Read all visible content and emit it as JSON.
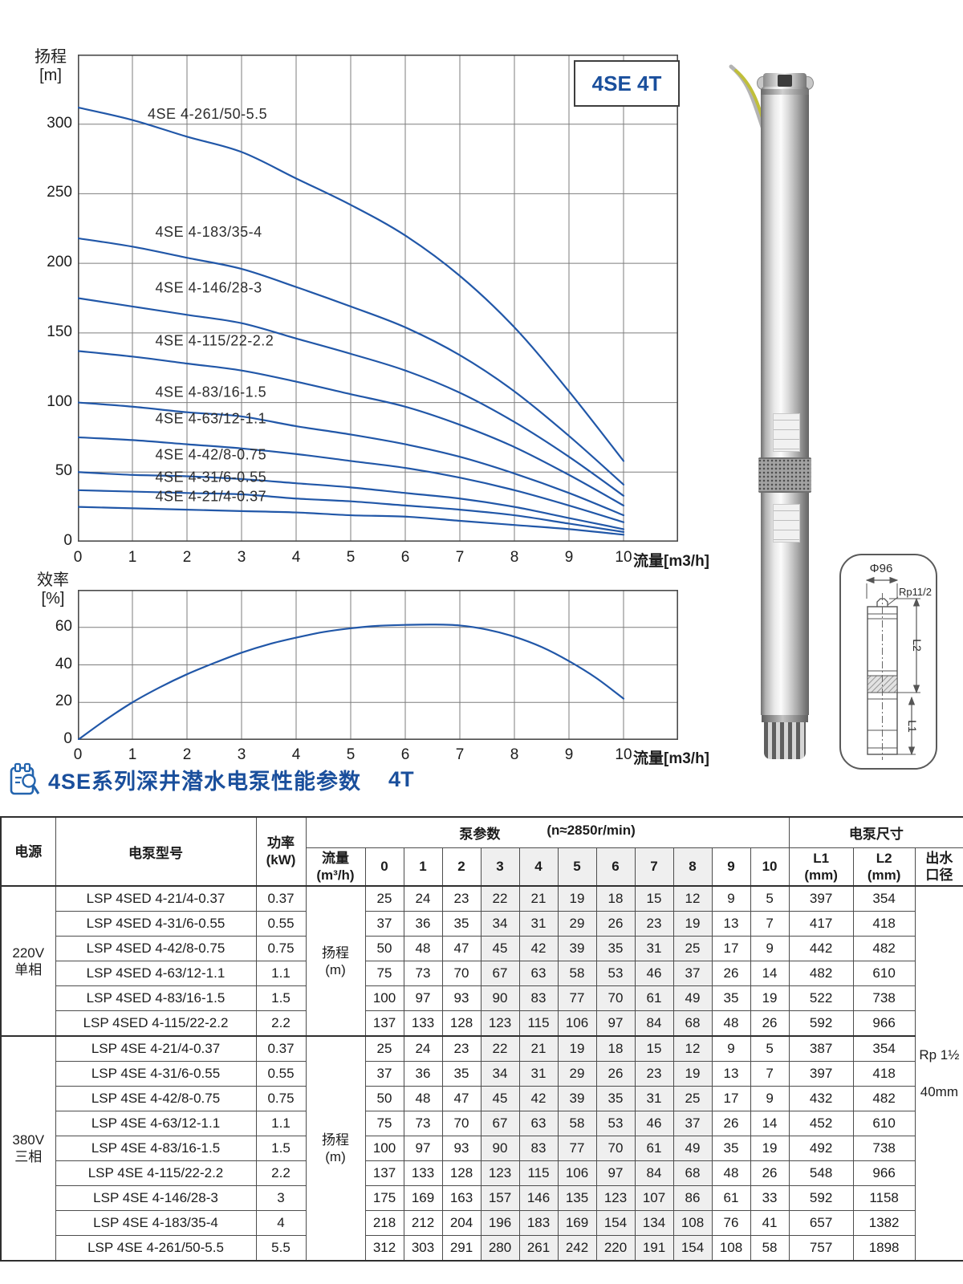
{
  "colors": {
    "accent": "#1a4f9c",
    "curve": "#2157a8",
    "shade": "#efefef",
    "grid": "#7d7d7d",
    "cable_yellow": "#c0bf3a",
    "cable_gray": "#b3b3b3"
  },
  "charts": {
    "head_axis_label": "扬程\n[m]",
    "eff_axis_label": "效率\n[%]",
    "flow_axis_label": "流量[m3/h]"
  },
  "chart_data": [
    {
      "type": "line",
      "title": "4SE 4T",
      "xlabel": "流量[m3/h]",
      "ylabel": "扬程 [m]",
      "xlim": [
        0,
        11
      ],
      "ylim": [
        0,
        350
      ],
      "grid": true,
      "grid_step_y": 50,
      "xticks": [
        0,
        1,
        2,
        3,
        4,
        5,
        6,
        7,
        8,
        9,
        10
      ],
      "yticks": [
        0,
        50,
        100,
        150,
        200,
        250,
        300
      ],
      "x": [
        0,
        1,
        2,
        3,
        4,
        5,
        6,
        7,
        8,
        9,
        10
      ],
      "series": [
        {
          "name": "4SE 4-261/50-5.5",
          "values": [
            312,
            303,
            291,
            280,
            261,
            242,
            220,
            191,
            154,
            108,
            58
          ],
          "label_at": [
            1.28,
            304
          ]
        },
        {
          "name": "4SE 4-183/35-4",
          "values": [
            218,
            212,
            204,
            196,
            183,
            169,
            154,
            134,
            108,
            76,
            41
          ],
          "label_at": [
            1.42,
            219
          ]
        },
        {
          "name": "4SE 4-146/28-3",
          "values": [
            175,
            169,
            163,
            157,
            146,
            135,
            123,
            107,
            86,
            61,
            33
          ],
          "label_at": [
            1.42,
            179
          ]
        },
        {
          "name": "4SE 4-115/22-2.2",
          "values": [
            137,
            133,
            128,
            123,
            115,
            106,
            97,
            84,
            68,
            48,
            26
          ],
          "label_at": [
            1.42,
            141
          ]
        },
        {
          "name": "4SE 4-83/16-1.5",
          "values": [
            100,
            97,
            93,
            90,
            83,
            77,
            70,
            61,
            49,
            35,
            19
          ],
          "label_at": [
            1.42,
            104
          ]
        },
        {
          "name": "4SE 4-63/12-1.1",
          "values": [
            75,
            73,
            70,
            67,
            63,
            58,
            53,
            46,
            37,
            26,
            14
          ],
          "label_at": [
            1.42,
            85
          ]
        },
        {
          "name": "4SE 4-42/8-0.75",
          "values": [
            50,
            48,
            47,
            45,
            42,
            39,
            35,
            31,
            25,
            17,
            9
          ],
          "label_at": [
            1.42,
            59
          ]
        },
        {
          "name": "4SE 4-31/6-0.55",
          "values": [
            37,
            36,
            35,
            34,
            31,
            29,
            26,
            23,
            19,
            13,
            7
          ],
          "label_at": [
            1.42,
            43
          ]
        },
        {
          "name": "4SE 4-21/4-0.37",
          "values": [
            25,
            24,
            23,
            22,
            21,
            19,
            18,
            15,
            12,
            9,
            5
          ],
          "label_at": [
            1.42,
            29
          ]
        }
      ]
    },
    {
      "type": "line",
      "title": "",
      "xlabel": "流量[m3/h]",
      "ylabel": "效率 [%]",
      "xlim": [
        0,
        11
      ],
      "ylim": [
        0,
        80
      ],
      "grid": true,
      "grid_step_y": 20,
      "xticks": [
        0,
        1,
        2,
        3,
        4,
        5,
        6,
        7,
        8,
        9,
        10
      ],
      "yticks": [
        0,
        20,
        40,
        60
      ],
      "series": [
        {
          "name": "efficiency",
          "points": [
            [
              0,
              0
            ],
            [
              0.5,
              10.5
            ],
            [
              1,
              20
            ],
            [
              1.5,
              28
            ],
            [
              2,
              35
            ],
            [
              2.5,
              41
            ],
            [
              3,
              46.5
            ],
            [
              3.5,
              51
            ],
            [
              4,
              54.5
            ],
            [
              4.5,
              57.5
            ],
            [
              5,
              59.5
            ],
            [
              5.5,
              60.8
            ],
            [
              6,
              61.3
            ],
            [
              6.5,
              61.5
            ],
            [
              7,
              61
            ],
            [
              7.5,
              58.8
            ],
            [
              8,
              55
            ],
            [
              8.5,
              49.5
            ],
            [
              9,
              42
            ],
            [
              9.5,
              33
            ],
            [
              10,
              22
            ]
          ]
        }
      ]
    }
  ],
  "diagram": {
    "diameter": "Φ96",
    "thread": "Rp11/2",
    "l1": "L1",
    "l2": "L2"
  },
  "section": {
    "title": "4SE系列深井潜水电泵性能参数",
    "suffix": "4T"
  },
  "table": {
    "header": {
      "power": "电源",
      "model": "电泵型号",
      "kw": "功率\n(kW)",
      "pump_params": "泵参数",
      "speed": "(n≈2850r/min)",
      "dims": "电泵尺寸",
      "flow": "流量\n(m³/h)",
      "flows": [
        "0",
        "1",
        "2",
        "3",
        "4",
        "5",
        "6",
        "7",
        "8",
        "9",
        "10"
      ],
      "l1": "L1\n(mm)",
      "l2": "L2\n(mm)",
      "outlet": "出水\n口径"
    },
    "shaded_flows": [
      3,
      4,
      5,
      6,
      7,
      8
    ],
    "head_unit": "扬程\n(m)",
    "outlet_value": {
      "line1": "Rp 1½",
      "line2": "40mm"
    },
    "groups": [
      {
        "power": "220V\n单相",
        "rows": [
          {
            "model": "LSP 4SED 4-21/4-0.37",
            "kw": "0.37",
            "heads": [
              25,
              24,
              23,
              22,
              21,
              19,
              18,
              15,
              12,
              9,
              5
            ],
            "l1": "397",
            "l2": "354"
          },
          {
            "model": "LSP 4SED 4-31/6-0.55",
            "kw": "0.55",
            "heads": [
              37,
              36,
              35,
              34,
              31,
              29,
              26,
              23,
              19,
              13,
              7
            ],
            "l1": "417",
            "l2": "418"
          },
          {
            "model": "LSP 4SED 4-42/8-0.75",
            "kw": "0.75",
            "heads": [
              50,
              48,
              47,
              45,
              42,
              39,
              35,
              31,
              25,
              17,
              9
            ],
            "l1": "442",
            "l2": "482"
          },
          {
            "model": "LSP 4SED 4-63/12-1.1",
            "kw": "1.1",
            "heads": [
              75,
              73,
              70,
              67,
              63,
              58,
              53,
              46,
              37,
              26,
              14
            ],
            "l1": "482",
            "l2": "610"
          },
          {
            "model": "LSP 4SED 4-83/16-1.5",
            "kw": "1.5",
            "heads": [
              100,
              97,
              93,
              90,
              83,
              77,
              70,
              61,
              49,
              35,
              19
            ],
            "l1": "522",
            "l2": "738"
          },
          {
            "model": "LSP 4SED 4-115/22-2.2",
            "kw": "2.2",
            "heads": [
              137,
              133,
              128,
              123,
              115,
              106,
              97,
              84,
              68,
              48,
              26
            ],
            "l1": "592",
            "l2": "966"
          }
        ]
      },
      {
        "power": "380V\n三相",
        "rows": [
          {
            "model": "LSP 4SE 4-21/4-0.37",
            "kw": "0.37",
            "heads": [
              25,
              24,
              23,
              22,
              21,
              19,
              18,
              15,
              12,
              9,
              5
            ],
            "l1": "387",
            "l2": "354"
          },
          {
            "model": "LSP 4SE 4-31/6-0.55",
            "kw": "0.55",
            "heads": [
              37,
              36,
              35,
              34,
              31,
              29,
              26,
              23,
              19,
              13,
              7
            ],
            "l1": "397",
            "l2": "418"
          },
          {
            "model": "LSP 4SE 4-42/8-0.75",
            "kw": "0.75",
            "heads": [
              50,
              48,
              47,
              45,
              42,
              39,
              35,
              31,
              25,
              17,
              9
            ],
            "l1": "432",
            "l2": "482"
          },
          {
            "model": "LSP 4SE 4-63/12-1.1",
            "kw": "1.1",
            "heads": [
              75,
              73,
              70,
              67,
              63,
              58,
              53,
              46,
              37,
              26,
              14
            ],
            "l1": "452",
            "l2": "610"
          },
          {
            "model": "LSP 4SE 4-83/16-1.5",
            "kw": "1.5",
            "heads": [
              100,
              97,
              93,
              90,
              83,
              77,
              70,
              61,
              49,
              35,
              19
            ],
            "l1": "492",
            "l2": "738"
          },
          {
            "model": "LSP 4SE 4-115/22-2.2",
            "kw": "2.2",
            "heads": [
              137,
              133,
              128,
              123,
              115,
              106,
              97,
              84,
              68,
              48,
              26
            ],
            "l1": "548",
            "l2": "966"
          },
          {
            "model": "LSP 4SE 4-146/28-3",
            "kw": "3",
            "heads": [
              175,
              169,
              163,
              157,
              146,
              135,
              123,
              107,
              86,
              61,
              33
            ],
            "l1": "592",
            "l2": "1158"
          },
          {
            "model": "LSP 4SE 4-183/35-4",
            "kw": "4",
            "heads": [
              218,
              212,
              204,
              196,
              183,
              169,
              154,
              134,
              108,
              76,
              41
            ],
            "l1": "657",
            "l2": "1382"
          },
          {
            "model": "LSP 4SE 4-261/50-5.5",
            "kw": "5.5",
            "heads": [
              312,
              303,
              291,
              280,
              261,
              242,
              220,
              191,
              154,
              108,
              58
            ],
            "l1": "757",
            "l2": "1898"
          }
        ]
      }
    ]
  }
}
